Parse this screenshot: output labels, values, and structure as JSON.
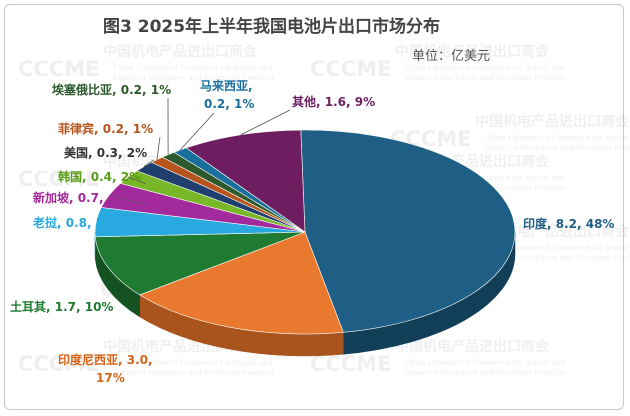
{
  "chart_data": {
    "type": "pie",
    "title": "图3   2025年上半年我国电池片出口市场分布",
    "unit": "单位：亿美元",
    "slices": [
      {
        "name": "印度",
        "value": 8.2,
        "percent": "48%",
        "label": "印度, 8.2, 48%",
        "color": "#1f5f85",
        "side": "#123f58",
        "labelColor": "#1f5f85"
      },
      {
        "name": "印度尼西亚",
        "value": 3.0,
        "percent": "17%",
        "label": "印度尼西亚, 3.0,",
        "label2": "17%",
        "color": "#e8792e",
        "side": "#a9541c",
        "labelColor": "#d8641a"
      },
      {
        "name": "土耳其",
        "value": 1.7,
        "percent": "10%",
        "label": "土耳其, 1.7, 10%",
        "color": "#1f7a32",
        "side": "#145222",
        "labelColor": "#1f7a32"
      },
      {
        "name": "老挝",
        "value": 0.8,
        "percent": "5%",
        "label": "老挝, 0.8, 5%",
        "color": "#28a9e0",
        "side": "#1b7aa3",
        "labelColor": "#28a9e0"
      },
      {
        "name": "新加坡",
        "value": 0.7,
        "percent": "4%",
        "label": "新加坡, 0.7, 4%",
        "color": "#a32a9c",
        "side": "#701c6b",
        "labelColor": "#a32a9c"
      },
      {
        "name": "韩国",
        "value": 0.4,
        "percent": "2%",
        "label": "韩国, 0.4, 2%",
        "color": "#78b828",
        "side": "#52831a",
        "labelColor": "#5a9c1a"
      },
      {
        "name": "美国",
        "value": 0.3,
        "percent": "2%",
        "label": "美国, 0.3, 2%",
        "color": "#1f3f6e",
        "side": "#14294a",
        "labelColor": "#333333"
      },
      {
        "name": "菲律宾",
        "value": 0.2,
        "percent": "1%",
        "label": "菲律宾, 0.2, 1%",
        "color": "#b5541c",
        "side": "#7c3812",
        "labelColor": "#b5541c"
      },
      {
        "name": "埃塞俄比亚",
        "value": 0.2,
        "percent": "1%",
        "label": "埃塞俄比亚, 0.2, 1%",
        "color": "#2c5a2c",
        "side": "#1c3b1c",
        "labelColor": "#2c5a2c"
      },
      {
        "name": "马来西亚",
        "value": 0.2,
        "percent": "1%",
        "label": "马来西亚,",
        "label2": "0.2, 1%",
        "color": "#1b6f9c",
        "side": "#12496a",
        "labelColor": "#1b6f9c"
      },
      {
        "name": "其他",
        "value": 1.6,
        "percent": "9%",
        "label": "其他, 1.6, 9%",
        "color": "#6e1e60",
        "side": "#4a1341",
        "labelColor": "#6e1e60"
      }
    ]
  },
  "watermark": {
    "logo": "CCCME",
    "cn": "中国机电产品进出口商会",
    "en1": "China Chamber of Commerce for Import and",
    "en2": "Export of Machinery and Electronic Products"
  }
}
